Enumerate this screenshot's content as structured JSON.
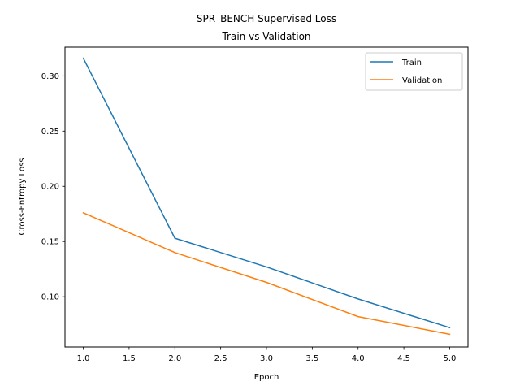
{
  "chart_data": {
    "type": "line",
    "title_lines": [
      "SPR_BENCH Supervised Loss",
      "Train vs Validation"
    ],
    "xlabel": "Epoch",
    "ylabel": "Cross-Entropy Loss",
    "x": [
      1,
      2,
      3,
      4,
      5
    ],
    "xticks": [
      "1.0",
      "1.5",
      "2.0",
      "2.5",
      "3.0",
      "3.5",
      "4.0",
      "4.5",
      "5.0"
    ],
    "yticks": [
      "0.10",
      "0.15",
      "0.20",
      "0.25",
      "0.30"
    ],
    "xlim": [
      0.8,
      5.2
    ],
    "ylim": [
      0.0545,
      0.326
    ],
    "grid": false,
    "legend_position": "upper right",
    "series": [
      {
        "name": "Train",
        "color": "#1f77b4",
        "values": [
          0.316,
          0.153,
          0.127,
          0.098,
          0.072
        ]
      },
      {
        "name": "Validation",
        "color": "#ff7f0e",
        "values": [
          0.176,
          0.14,
          0.113,
          0.082,
          0.066
        ]
      }
    ]
  }
}
